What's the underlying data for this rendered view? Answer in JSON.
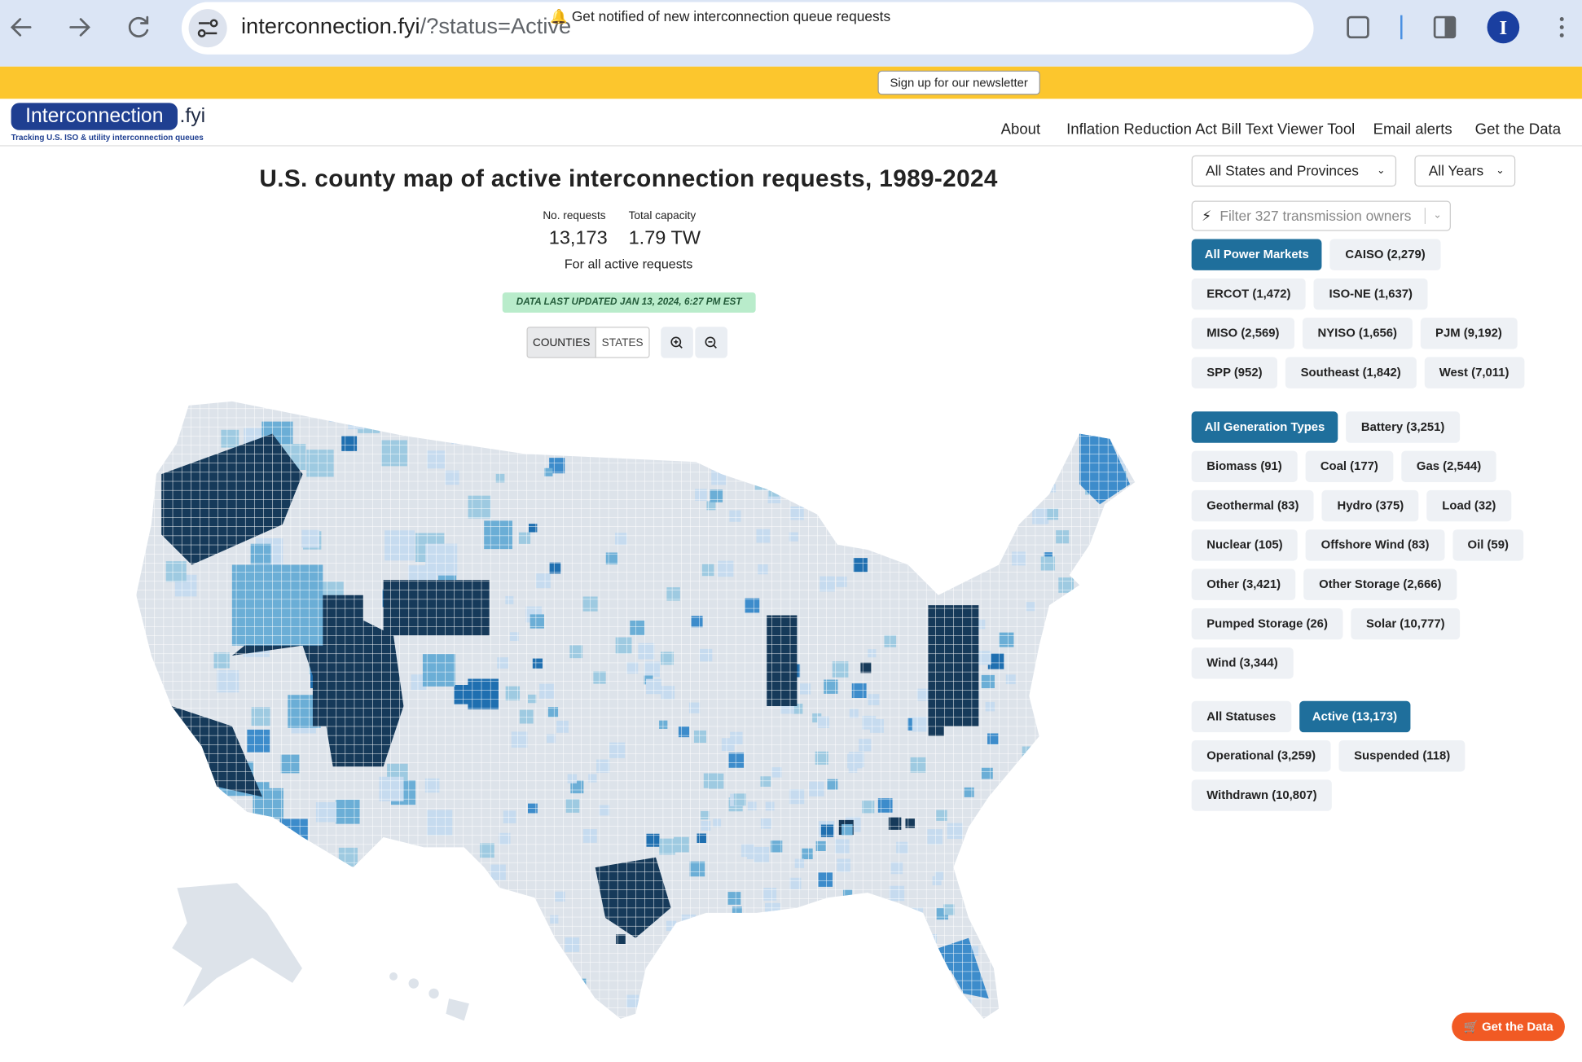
{
  "browser": {
    "url_host": "interconnection.fyi",
    "url_path": "/?status=Active"
  },
  "banner": {
    "text": "🔔 Get notified of new interconnection queue requests",
    "button": "Sign up for our newsletter"
  },
  "header": {
    "logo_main": "Interconnection",
    "logo_suffix": ".fyi",
    "tagline": "Tracking U.S. ISO & utility interconnection queues",
    "nav": [
      "About",
      "Inflation Reduction Act Bill Text Viewer Tool",
      "Email alerts",
      "Get the Data"
    ]
  },
  "main": {
    "title": "U.S. county map of active interconnection requests, 1989-2024",
    "stats": [
      {
        "label": "No. requests",
        "value": "13,173"
      },
      {
        "label": "Total capacity",
        "value": "1.79 TW"
      }
    ],
    "note": "For all active requests",
    "updated": "DATA LAST UPDATED JAN 13, 2024, 6:27 PM EST",
    "view_toggle": [
      "COUNTIES",
      "STATES"
    ]
  },
  "sidebar": {
    "states_dropdown": "All States and Provinces",
    "years_dropdown": "All Years",
    "owner_filter": "Filter 327 transmission owners",
    "power_markets": [
      [
        "All Power Markets",
        "CAISO (2,279)"
      ],
      [
        "ERCOT (1,472)",
        "ISO-NE (1,637)"
      ],
      [
        "MISO (2,569)",
        "NYISO (1,656)",
        "PJM (9,192)"
      ],
      [
        "SPP (952)",
        "Southeast (1,842)",
        "West (7,011)"
      ]
    ],
    "generation_types": [
      [
        "All Generation Types",
        "Battery (3,251)"
      ],
      [
        "Biomass (91)",
        "Coal (177)",
        "Gas (2,544)"
      ],
      [
        "Geothermal (83)",
        "Hydro (375)",
        "Load (32)"
      ],
      [
        "Nuclear (105)",
        "Offshore Wind (83)",
        "Oil (59)"
      ],
      [
        "Other (3,421)",
        "Other Storage (2,666)"
      ],
      [
        "Pumped Storage (26)",
        "Solar (10,777)"
      ],
      [
        "Wind (3,344)"
      ]
    ],
    "statuses": [
      [
        "All Statuses",
        "Active (13,173)"
      ],
      [
        "Operational (3,259)",
        "Suspended (118)"
      ],
      [
        "Withdrawn (10,807)"
      ]
    ]
  },
  "floating_button": "Get the Data"
}
